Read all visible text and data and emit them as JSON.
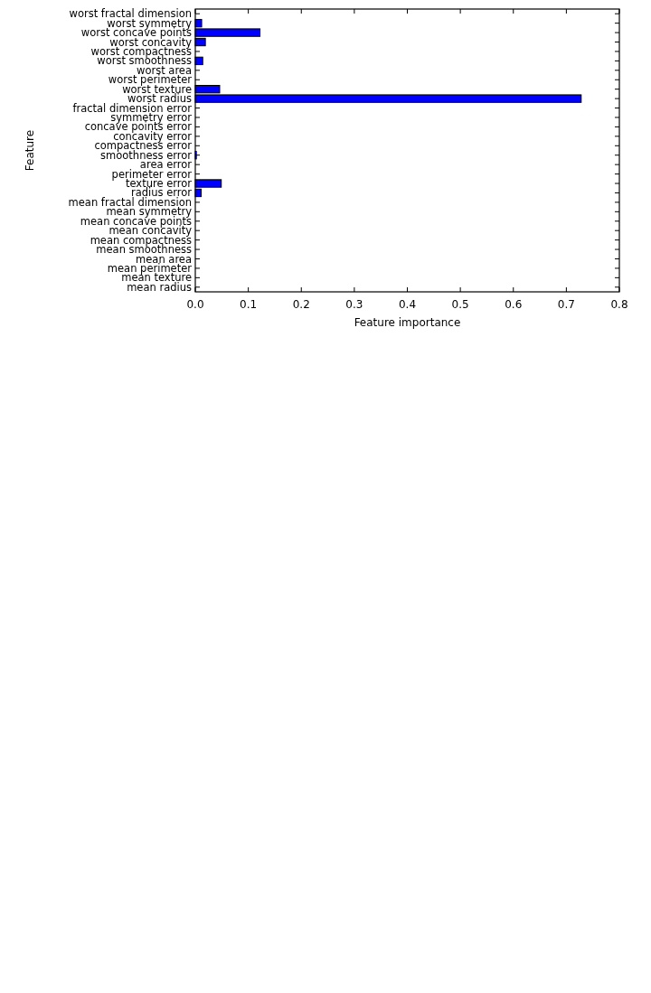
{
  "chart_data": {
    "type": "bar",
    "orientation": "horizontal",
    "xlabel": "Feature importance",
    "ylabel": "Feature",
    "categories": [
      "worst fractal dimension",
      "worst symmetry",
      "worst concave points",
      "worst concavity",
      "worst compactness",
      "worst smoothness",
      "worst area",
      "worst perimeter",
      "worst texture",
      "worst radius",
      "fractal dimension error",
      "symmetry error",
      "concave points error",
      "concavity error",
      "compactness error",
      "smoothness error",
      "area error",
      "perimeter error",
      "texture error",
      "radius error",
      "mean fractal dimension",
      "mean symmetry",
      "mean concave points",
      "mean concavity",
      "mean compactness",
      "mean smoothness",
      "mean area",
      "mean perimeter",
      "mean texture",
      "mean radius"
    ],
    "values": [
      0,
      0.012,
      0.122,
      0.019,
      0,
      0.014,
      0,
      0,
      0.046,
      0.728,
      0,
      0,
      0,
      0,
      0,
      0.002,
      0,
      0,
      0.049,
      0.011,
      0,
      0,
      0,
      0,
      0,
      0,
      0,
      0,
      0,
      0
    ],
    "color": "#0000ff",
    "xlim": [
      0,
      0.8
    ],
    "xticks": [
      {
        "value": 0,
        "label": "0.0"
      },
      {
        "value": 0.1,
        "label": "0.1"
      },
      {
        "value": 0.2,
        "label": "0.2"
      },
      {
        "value": 0.3,
        "label": "0.3"
      },
      {
        "value": 0.4,
        "label": "0.4"
      },
      {
        "value": 0.5,
        "label": "0.5"
      },
      {
        "value": 0.6,
        "label": "0.6"
      },
      {
        "value": 0.7,
        "label": "0.7"
      },
      {
        "value": 0.8,
        "label": "0.8"
      }
    ],
    "grid": false
  }
}
